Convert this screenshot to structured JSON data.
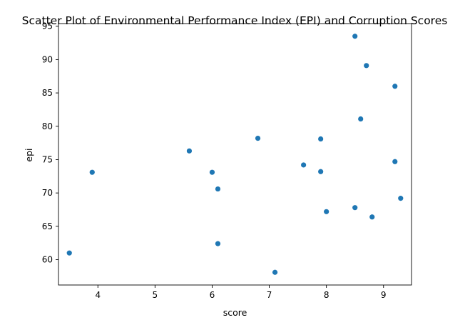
{
  "chart_data": {
    "type": "scatter",
    "title": "Scatter Plot of Environmental Performance Index (EPI) and Corruption Scores",
    "xlabel": "score",
    "ylabel": "epi",
    "xlim": [
      3.31,
      9.49
    ],
    "ylim": [
      56.2,
      95.4
    ],
    "x_ticks": [
      4,
      5,
      6,
      7,
      8,
      9
    ],
    "y_ticks": [
      60,
      65,
      70,
      75,
      80,
      85,
      90,
      95
    ],
    "grid": false,
    "legend": "none",
    "marker_color": "#1f77b4",
    "points": [
      {
        "x": 8.5,
        "y": 93.5
      },
      {
        "x": 8.7,
        "y": 89.1
      },
      {
        "x": 9.2,
        "y": 86.0
      },
      {
        "x": 8.6,
        "y": 81.1
      },
      {
        "x": 6.8,
        "y": 78.2
      },
      {
        "x": 7.9,
        "y": 78.1
      },
      {
        "x": 5.6,
        "y": 76.3
      },
      {
        "x": 9.2,
        "y": 74.7
      },
      {
        "x": 7.6,
        "y": 74.2
      },
      {
        "x": 7.9,
        "y": 73.2
      },
      {
        "x": 3.9,
        "y": 73.1
      },
      {
        "x": 6.0,
        "y": 73.1
      },
      {
        "x": 6.1,
        "y": 70.6
      },
      {
        "x": 9.3,
        "y": 69.2
      },
      {
        "x": 8.5,
        "y": 67.8
      },
      {
        "x": 8.0,
        "y": 67.2
      },
      {
        "x": 8.8,
        "y": 66.4
      },
      {
        "x": 6.1,
        "y": 62.4
      },
      {
        "x": 3.5,
        "y": 61.0
      },
      {
        "x": 7.1,
        "y": 58.1
      }
    ]
  }
}
